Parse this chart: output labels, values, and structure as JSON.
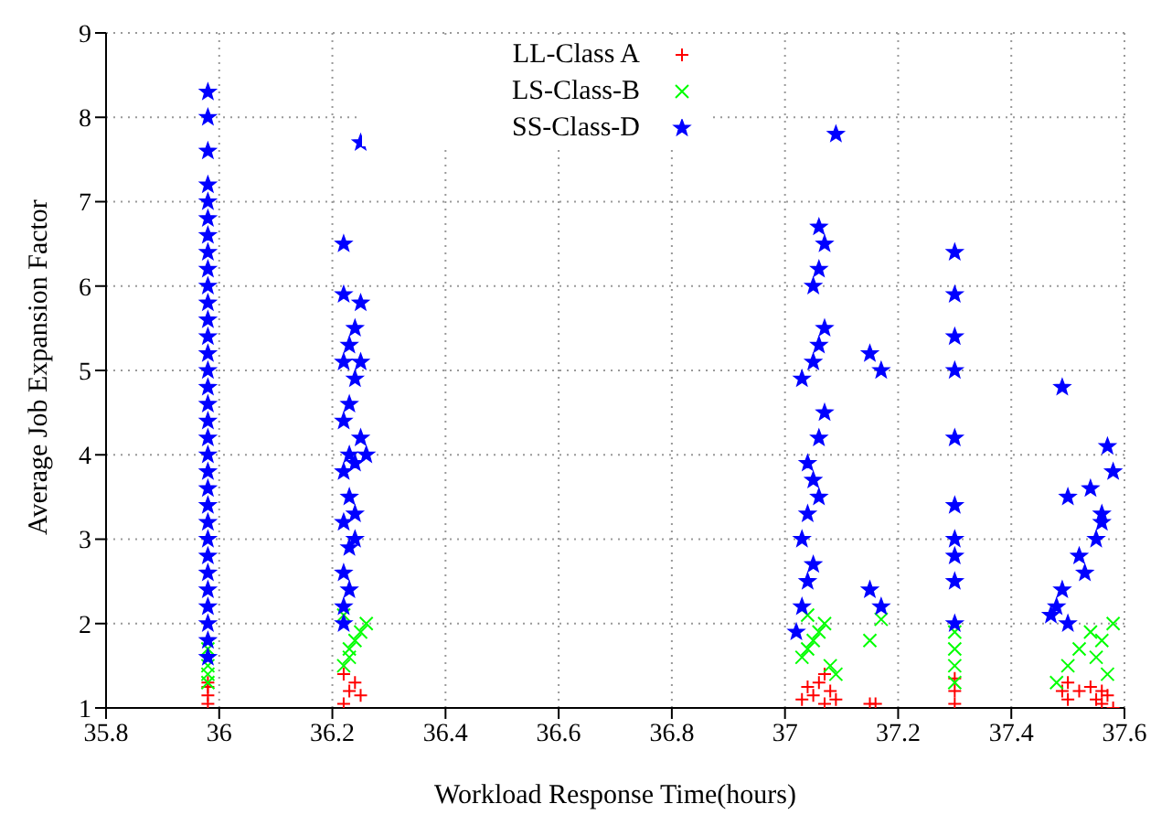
{
  "chart_data": {
    "type": "scatter",
    "xlabel": "Workload Response Time(hours)",
    "ylabel": "Average Job Expansion Factor",
    "xlim": [
      35.8,
      37.6
    ],
    "ylim": [
      1,
      9
    ],
    "xticks": [
      35.8,
      36,
      36.2,
      36.4,
      36.6,
      36.8,
      37,
      37.2,
      37.4,
      37.6
    ],
    "yticks": [
      1,
      2,
      3,
      4,
      5,
      6,
      7,
      8,
      9
    ],
    "grid": true,
    "legend": "top",
    "series": [
      {
        "name": "LL-Class A",
        "color": "#ff0000",
        "marker": "cross",
        "x": [
          35.98,
          35.98,
          35.98,
          35.98,
          36.22,
          36.23,
          36.24,
          36.25,
          36.22,
          37.03,
          37.04,
          37.05,
          37.06,
          37.07,
          37.08,
          37.09,
          37.07,
          37.15,
          37.16,
          37.3,
          37.3,
          37.3,
          37.49,
          37.5,
          37.5,
          37.52,
          37.54,
          37.55,
          37.56,
          37.57,
          37.58,
          37.56
        ],
        "values": [
          1.05,
          1.15,
          1.25,
          1.3,
          1.05,
          1.2,
          1.3,
          1.15,
          1.4,
          1.1,
          1.25,
          1.15,
          1.3,
          1.05,
          1.2,
          1.1,
          1.4,
          1.05,
          1.05,
          1.05,
          1.2,
          1.35,
          1.2,
          1.3,
          1.1,
          1.2,
          1.25,
          1.1,
          1.05,
          1.15,
          1.0,
          1.2
        ]
      },
      {
        "name": "LS-Class-B",
        "color": "#00ff00",
        "marker": "x",
        "x": [
          35.98,
          35.98,
          35.98,
          35.98,
          36.22,
          36.23,
          36.24,
          36.25,
          36.26,
          36.22,
          36.23,
          37.03,
          37.04,
          37.05,
          37.06,
          37.07,
          37.08,
          37.09,
          37.04,
          37.15,
          37.17,
          37.3,
          37.3,
          37.3,
          37.3,
          37.48,
          37.5,
          37.52,
          37.54,
          37.55,
          37.56,
          37.57,
          37.58
        ],
        "values": [
          1.3,
          1.4,
          1.5,
          1.7,
          1.5,
          1.7,
          1.8,
          1.9,
          2.0,
          2.1,
          1.6,
          1.6,
          1.7,
          1.8,
          1.9,
          2.0,
          1.5,
          1.4,
          2.1,
          1.8,
          2.05,
          1.3,
          1.5,
          1.7,
          1.9,
          1.3,
          1.5,
          1.7,
          1.9,
          1.6,
          1.8,
          1.4,
          2.0
        ]
      },
      {
        "name": "SS-Class-D",
        "color": "#0000ff",
        "marker": "star",
        "x": [
          35.98,
          35.98,
          35.98,
          35.98,
          35.98,
          35.98,
          35.98,
          35.98,
          35.98,
          35.98,
          35.98,
          35.98,
          35.98,
          35.98,
          35.98,
          35.98,
          35.98,
          35.98,
          35.98,
          35.98,
          35.98,
          35.98,
          35.98,
          35.98,
          35.98,
          35.98,
          35.98,
          35.98,
          35.98,
          35.98,
          35.98,
          35.98,
          36.22,
          36.22,
          36.23,
          36.22,
          36.23,
          36.24,
          36.22,
          36.23,
          36.22,
          36.24,
          36.23,
          36.25,
          36.22,
          36.23,
          36.24,
          36.22,
          36.23,
          36.24,
          36.25,
          36.22,
          36.22,
          36.25,
          36.24,
          36.26,
          36.25,
          37.02,
          37.03,
          37.04,
          37.05,
          37.03,
          37.04,
          37.06,
          37.05,
          37.04,
          37.06,
          37.07,
          37.03,
          37.05,
          37.06,
          37.07,
          37.05,
          37.06,
          37.07,
          37.06,
          37.09,
          37.15,
          37.17,
          37.17,
          37.15,
          37.3,
          37.3,
          37.3,
          37.3,
          37.3,
          37.3,
          37.3,
          37.3,
          37.3,
          37.3,
          37.47,
          37.49,
          37.52,
          37.55,
          37.56,
          37.5,
          37.58,
          37.57,
          37.49,
          37.53,
          37.56,
          37.5,
          37.48,
          37.54
        ],
        "values": [
          1.6,
          1.8,
          2.0,
          2.2,
          2.4,
          2.6,
          2.8,
          3.0,
          3.2,
          3.4,
          3.6,
          3.8,
          4.0,
          4.2,
          4.4,
          4.6,
          4.8,
          5.0,
          5.2,
          5.4,
          5.6,
          5.8,
          6.0,
          6.2,
          6.4,
          6.6,
          6.8,
          7.0,
          7.2,
          7.6,
          8.0,
          8.3,
          2.0,
          2.2,
          2.4,
          2.6,
          2.9,
          3.0,
          3.2,
          3.5,
          3.8,
          3.9,
          4.0,
          4.2,
          4.4,
          4.6,
          4.9,
          5.1,
          5.3,
          5.5,
          5.8,
          5.9,
          6.5,
          7.7,
          3.3,
          4.0,
          5.1,
          1.9,
          2.2,
          2.5,
          2.7,
          3.0,
          3.3,
          3.5,
          3.7,
          3.9,
          4.2,
          4.5,
          4.9,
          5.1,
          5.3,
          5.5,
          6.0,
          6.2,
          6.5,
          6.7,
          7.8,
          2.4,
          2.2,
          5.0,
          5.2,
          2.0,
          2.5,
          2.8,
          3.0,
          3.4,
          4.2,
          5.0,
          5.4,
          5.9,
          6.4,
          2.1,
          2.4,
          2.8,
          3.0,
          3.3,
          3.5,
          3.8,
          4.1,
          4.8,
          2.6,
          3.2,
          2.0,
          2.2,
          3.6
        ]
      }
    ]
  }
}
